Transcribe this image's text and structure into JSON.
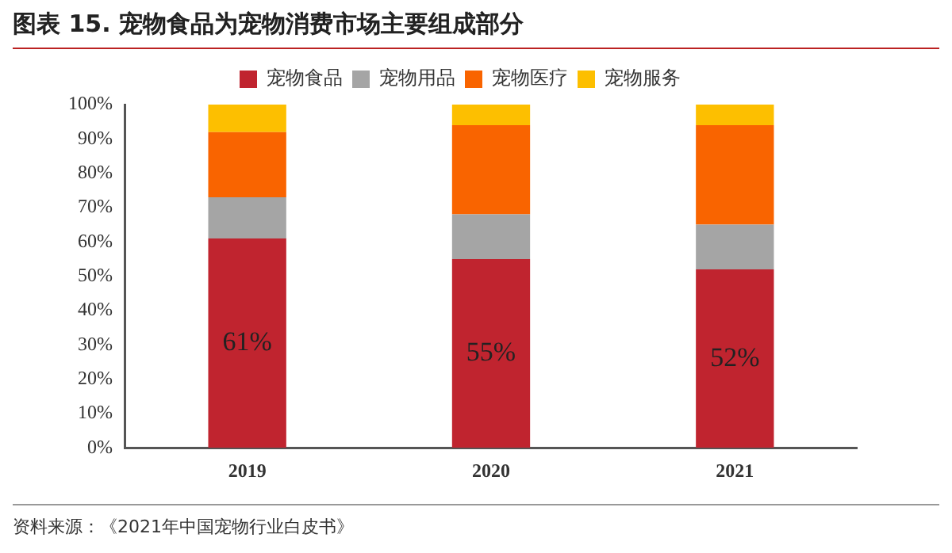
{
  "chart_data": {
    "type": "bar",
    "stacked": true,
    "title": "图表 15. 宠物食品为宠物消费市场主要组成部分",
    "categories": [
      "2019",
      "2020",
      "2021"
    ],
    "series": [
      {
        "name": "宠物食品",
        "color": "#c0242f",
        "values": [
          61,
          55,
          52
        ],
        "value_labels": [
          "61%",
          "55%",
          "52%"
        ]
      },
      {
        "name": "宠物用品",
        "color": "#a5a5a5",
        "values": [
          12,
          13,
          13
        ]
      },
      {
        "name": "宠物医疗",
        "color": "#f96400",
        "values": [
          19,
          26,
          29
        ]
      },
      {
        "name": "宠物服务",
        "color": "#fdbf00",
        "values": [
          8,
          6,
          6
        ]
      }
    ],
    "ylim": [
      0,
      100
    ],
    "yticks": [
      {
        "value": 0,
        "label": "0%"
      },
      {
        "value": 10,
        "label": "10%"
      },
      {
        "value": 20,
        "label": "20%"
      },
      {
        "value": 30,
        "label": "30%"
      },
      {
        "value": 40,
        "label": "40%"
      },
      {
        "value": 50,
        "label": "50%"
      },
      {
        "value": 60,
        "label": "60%"
      },
      {
        "value": 70,
        "label": "70%"
      },
      {
        "value": 80,
        "label": "80%"
      },
      {
        "value": 90,
        "label": "90%"
      },
      {
        "value": 100,
        "label": "100%"
      }
    ],
    "grid": false,
    "legend": "top",
    "annotations": [
      "资料来源：《2021年中国宠物行业白皮书》"
    ]
  }
}
